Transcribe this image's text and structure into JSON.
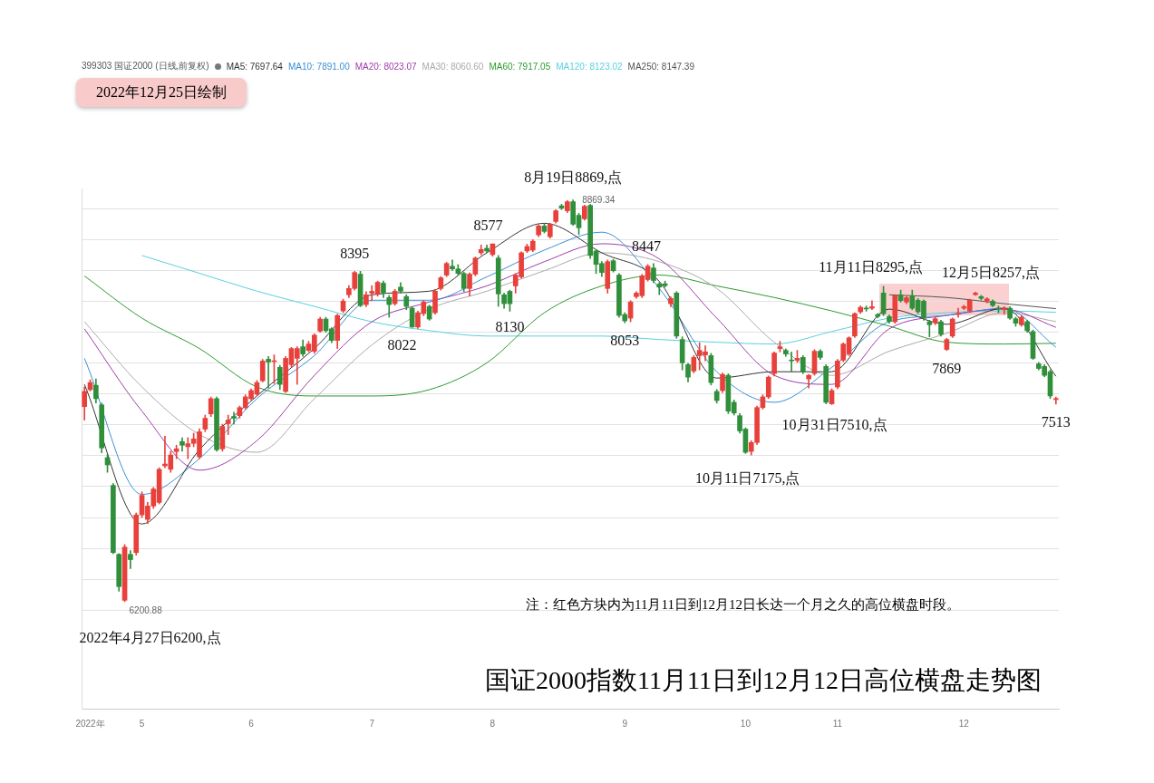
{
  "chart_data": {
    "type": "candlestick",
    "title": "国证2000指数11月11日到12月12日高位横盘走势图",
    "subtitle": "2022年12月25日绘制",
    "legend_title": "399303 国证2000 (日线,前复权)",
    "categories": [
      null,
      "2022年",
      null,
      null,
      null,
      null,
      null,
      null,
      null,
      null,
      "5",
      null,
      null,
      null,
      null,
      null,
      null,
      null,
      null,
      null,
      null,
      null,
      null,
      null,
      null,
      null,
      null,
      null,
      null,
      "6",
      null,
      null,
      null,
      null,
      null,
      null,
      null,
      null,
      null,
      null,
      null,
      null,
      null,
      null,
      null,
      null,
      null,
      null,
      null,
      null,
      "7",
      null,
      null,
      null,
      null,
      null,
      null,
      null,
      null,
      null,
      null,
      null,
      null,
      null,
      null,
      null,
      null,
      null,
      null,
      null,
      null,
      "8",
      null,
      null,
      null,
      null,
      null,
      null,
      null,
      null,
      null,
      null,
      null,
      null,
      null,
      null,
      null,
      null,
      null,
      null,
      null,
      null,
      null,
      null,
      "9",
      null,
      null,
      null,
      null,
      null,
      null,
      null,
      null,
      null,
      null,
      null,
      null,
      null,
      null,
      null,
      null,
      null,
      null,
      null,
      null,
      "10",
      null,
      null,
      null,
      null,
      null,
      null,
      null,
      null,
      null,
      null,
      null,
      null,
      null,
      null,
      null,
      "11",
      null,
      null,
      null,
      null,
      null,
      null,
      null,
      null,
      null,
      null,
      null,
      null,
      null,
      null,
      null,
      null,
      null,
      null,
      null,
      null,
      null,
      "12",
      null,
      null,
      null,
      null,
      null,
      null,
      null,
      null,
      null,
      null,
      null,
      null,
      null,
      null,
      null,
      null
    ],
    "ohlc": [
      [
        7496,
        7627,
        7407,
        7597
      ],
      [
        7609,
        7674,
        7600,
        7656
      ],
      [
        7638,
        7680,
        7520,
        7549
      ],
      [
        7508,
        7520,
        7190,
        7222
      ],
      [
        7157,
        7180,
        7060,
        7109
      ],
      [
        6973,
        6985,
        6520,
        6527
      ],
      [
        6515,
        6520,
        6270,
        6301
      ],
      [
        6210,
        6580,
        6200.88,
        6563
      ],
      [
        6515,
        6540,
        6420,
        6480
      ],
      [
        6527,
        6790,
        6510,
        6777
      ],
      [
        6777,
        6930,
        6760,
        6907
      ],
      [
        6747,
        6860,
        6720,
        6836
      ],
      [
        6836,
        6960,
        6820,
        6949
      ],
      [
        6860,
        7090,
        6850,
        7080
      ],
      [
        7103,
        7300,
        7090,
        7115
      ],
      [
        7080,
        7200,
        7060,
        7175
      ],
      [
        7198,
        7240,
        7150,
        7216
      ],
      [
        7264,
        7290,
        7200,
        7240
      ],
      [
        7230,
        7290,
        7150,
        7250
      ],
      [
        7252,
        7320,
        7230,
        7282
      ],
      [
        7163,
        7350,
        7150,
        7329
      ],
      [
        7347,
        7440,
        7330,
        7419
      ],
      [
        7448,
        7560,
        7430,
        7549
      ],
      [
        7549,
        7560,
        7200,
        7210
      ],
      [
        7216,
        7380,
        7200,
        7365
      ],
      [
        7383,
        7440,
        7310,
        7407
      ],
      [
        7431,
        7460,
        7380,
        7419
      ],
      [
        7436,
        7500,
        7420,
        7490
      ],
      [
        7490,
        7575,
        7480,
        7561
      ],
      [
        7549,
        7615,
        7540,
        7603
      ],
      [
        7579,
        7670,
        7570,
        7656
      ],
      [
        7668,
        7810,
        7660,
        7799
      ],
      [
        7811,
        7830,
        7620,
        7793
      ],
      [
        7795,
        7840,
        7650,
        7800
      ],
      [
        7757,
        7770,
        7610,
        7644
      ],
      [
        7597,
        7830,
        7590,
        7817
      ],
      [
        7775,
        7890,
        7760,
        7882
      ],
      [
        7817,
        7895,
        7644,
        7882
      ],
      [
        7894,
        7940,
        7830,
        7846
      ],
      [
        7870,
        7930,
        7860,
        7912
      ],
      [
        7864,
        7980,
        7850,
        7971
      ],
      [
        7998,
        8090,
        7990,
        8078
      ],
      [
        8078,
        8090,
        7990,
        8001
      ],
      [
        8013,
        8020,
        7920,
        7936
      ],
      [
        7936,
        8110,
        7882,
        8102
      ],
      [
        8132,
        8210,
        8120,
        8197
      ],
      [
        8239,
        8300,
        8220,
        8281
      ],
      [
        8281,
        8395,
        8270,
        8387
      ],
      [
        8376,
        8395,
        8160,
        8168
      ],
      [
        8174,
        8260,
        8160,
        8239
      ],
      [
        8250,
        8300,
        8200,
        8262
      ],
      [
        8245,
        8330,
        8230,
        8322
      ],
      [
        8316,
        8330,
        8220,
        8251
      ],
      [
        8221,
        8235,
        8090,
        8174
      ],
      [
        8180,
        8275,
        8170,
        8263
      ],
      [
        8290,
        8320,
        8250,
        8263
      ],
      [
        8227,
        8240,
        8140,
        8162
      ],
      [
        8150,
        8160,
        8022,
        8025
      ],
      [
        8025,
        8130,
        8015,
        8120
      ],
      [
        8114,
        8200,
        8100,
        8191
      ],
      [
        8162,
        8170,
        8070,
        8078
      ],
      [
        8120,
        8275,
        8110,
        8263
      ],
      [
        8281,
        8360,
        8270,
        8352
      ],
      [
        8370,
        8455,
        8360,
        8447
      ],
      [
        8429,
        8470,
        8400,
        8411
      ],
      [
        8411,
        8440,
        8370,
        8381
      ],
      [
        8381,
        8390,
        8260,
        8281
      ],
      [
        8281,
        8385,
        8230,
        8376
      ],
      [
        8376,
        8490,
        8365,
        8483
      ],
      [
        8518,
        8570,
        8505,
        8540
      ],
      [
        8548,
        8570,
        8520,
        8530
      ],
      [
        8506,
        8577,
        8495,
        8577
      ],
      [
        8483,
        8500,
        8162,
        8245
      ],
      [
        8239,
        8250,
        8150,
        8180
      ],
      [
        8262,
        8270,
        8130,
        8180
      ],
      [
        8298,
        8380,
        8250,
        8370
      ],
      [
        8358,
        8525,
        8350,
        8518
      ],
      [
        8530,
        8575,
        8520,
        8560
      ],
      [
        8536,
        8605,
        8525,
        8595
      ],
      [
        8637,
        8705,
        8625,
        8696
      ],
      [
        8696,
        8710,
        8650,
        8660
      ],
      [
        8625,
        8715,
        8615,
        8708
      ],
      [
        8726,
        8805,
        8715,
        8797
      ],
      [
        8830,
        8840,
        8805,
        8815
      ],
      [
        8797,
        8865,
        8785,
        8857
      ],
      [
        8857,
        8869.34,
        8700,
        8708
      ],
      [
        8767,
        8780,
        8640,
        8684
      ],
      [
        8744,
        8835,
        8735,
        8827
      ],
      [
        8833,
        8840,
        8480,
        8500
      ],
      [
        8530,
        8540,
        8380,
        8441
      ],
      [
        8447,
        8460,
        8360,
        8387
      ],
      [
        8281,
        8470,
        8250,
        8459
      ],
      [
        8465,
        8475,
        8390,
        8399
      ],
      [
        8370,
        8380,
        8090,
        8102
      ],
      [
        8108,
        8120,
        8053,
        8066
      ],
      [
        8084,
        8200,
        8060,
        8191
      ],
      [
        8227,
        8260,
        8215,
        8250
      ],
      [
        8233,
        8375,
        8220,
        8364
      ],
      [
        8340,
        8440,
        8330,
        8429
      ],
      [
        8417,
        8447,
        8320,
        8334
      ],
      [
        8310,
        8320,
        8240,
        8290
      ],
      [
        8312,
        8330,
        8290,
        8300
      ],
      [
        8180,
        8225,
        8160,
        8215
      ],
      [
        8251,
        8260,
        7950,
        7965
      ],
      [
        7942,
        7960,
        7740,
        7787
      ],
      [
        7775,
        7785,
        7660,
        7692
      ],
      [
        7733,
        7835,
        7720,
        7823
      ],
      [
        7835,
        7920,
        7740,
        7870
      ],
      [
        7840,
        7900,
        7800,
        7860
      ],
      [
        7835,
        7850,
        7640,
        7656
      ],
      [
        7597,
        7610,
        7520,
        7537
      ],
      [
        7603,
        7720,
        7590,
        7710
      ],
      [
        7704,
        7715,
        7450,
        7466
      ],
      [
        7525,
        7540,
        7440,
        7454
      ],
      [
        7436,
        7450,
        7320,
        7335
      ],
      [
        7347,
        7355,
        7185,
        7193
      ],
      [
        7199,
        7270,
        7175,
        7258
      ],
      [
        7258,
        7500,
        7245,
        7490
      ],
      [
        7490,
        7575,
        7480,
        7561
      ],
      [
        7561,
        7700,
        7550,
        7692
      ],
      [
        7716,
        7860,
        7700,
        7852
      ],
      [
        7882,
        7930,
        7860,
        7894
      ],
      [
        7870,
        7880,
        7830,
        7846
      ],
      [
        7805,
        7860,
        7730,
        7800
      ],
      [
        7804,
        7870,
        7790,
        7817
      ],
      [
        7823,
        7835,
        7715,
        7728
      ],
      [
        7680,
        7710,
        7620,
        7704
      ],
      [
        7716,
        7875,
        7705,
        7864
      ],
      [
        7864,
        7875,
        7810,
        7823
      ],
      [
        7763,
        7775,
        7515,
        7525
      ],
      [
        7515,
        7615,
        7510,
        7603
      ],
      [
        7627,
        7810,
        7615,
        7799
      ],
      [
        7805,
        7920,
        7795,
        7912
      ],
      [
        7846,
        7960,
        7835,
        7953
      ],
      [
        7965,
        8120,
        7955,
        8114
      ],
      [
        8126,
        8165,
        8115,
        8156
      ],
      [
        8150,
        8165,
        8130,
        8145
      ],
      [
        8150,
        8200,
        8140,
        8160
      ],
      [
        8108,
        8115,
        8085,
        8095
      ],
      [
        8251,
        8295,
        8100,
        8114
      ],
      [
        8096,
        8105,
        8050,
        8062
      ],
      [
        8060,
        8240,
        8050,
        8233
      ],
      [
        8239,
        8270,
        8190,
        8200
      ],
      [
        8191,
        8230,
        8180,
        8220
      ],
      [
        8233,
        8270,
        8140,
        8150
      ],
      [
        8203,
        8215,
        8115,
        8126
      ],
      [
        8197,
        8205,
        8070,
        8084
      ],
      [
        8060,
        8070,
        7960,
        8040
      ],
      [
        8053,
        8090,
        8040,
        8080
      ],
      [
        8060,
        8070,
        7965,
        7977
      ],
      [
        7876,
        7950,
        7869,
        7942
      ],
      [
        7965,
        8085,
        7955,
        8078
      ],
      [
        8110,
        8150,
        8090,
        8112
      ],
      [
        8150,
        8170,
        8140,
        8160
      ],
      [
        8132,
        8210,
        8120,
        8203
      ],
      [
        8240,
        8257,
        8235,
        8250
      ],
      [
        8227,
        8235,
        8205,
        8215
      ],
      [
        8197,
        8220,
        8185,
        8212
      ],
      [
        8197,
        8205,
        8160,
        8168
      ],
      [
        8150,
        8165,
        8120,
        8145
      ],
      [
        8140,
        8160,
        8110,
        8150
      ],
      [
        8150,
        8160,
        8075,
        8084
      ],
      [
        8080,
        8090,
        8030,
        8050
      ],
      [
        8040,
        8100,
        8030,
        8090
      ],
      [
        8060,
        8070,
        7990,
        8001
      ],
      [
        7995,
        8005,
        7810,
        7817
      ],
      [
        7780,
        7790,
        7740,
        7750
      ],
      [
        7763,
        7775,
        7695,
        7704
      ],
      [
        7728,
        7740,
        7550,
        7567
      ],
      [
        7543,
        7560,
        7513,
        7550
      ]
    ],
    "series": [
      {
        "name": "MA5: 7697.64",
        "type": "line",
        "color": "#333333",
        "values": [
          7644,
          null,
          null,
          null,
          null,
          null,
          null,
          null,
          null,
          null,
          6717,
          null,
          null,
          null,
          null,
          null,
          null,
          null,
          null,
          null,
          7210,
          null,
          null,
          null,
          null,
          null,
          null,
          null,
          null,
          null,
          7567,
          null,
          null,
          null,
          null,
          null,
          null,
          null,
          null,
          null,
          7882,
          null,
          null,
          null,
          null,
          null,
          null,
          null,
          null,
          null,
          8239,
          null,
          null,
          null,
          null,
          null,
          null,
          null,
          null,
          null,
          8263,
          null,
          null,
          null,
          null,
          null,
          null,
          null,
          null,
          null,
          8518,
          null,
          null,
          null,
          null,
          null,
          null,
          null,
          null,
          null,
          8714,
          null,
          null,
          null,
          null,
          null,
          null,
          null,
          null,
          null,
          8518,
          null,
          null,
          null,
          null,
          null,
          null,
          null,
          null,
          null,
          8328,
          null,
          null,
          null,
          null,
          null,
          null,
          null,
          null,
          null,
          7686,
          null,
          null,
          null,
          null,
          null,
          null,
          null,
          null,
          null,
          7728,
          null,
          null,
          null,
          null,
          null,
          null,
          null,
          null,
          null,
          7728,
          null,
          null,
          null,
          null,
          null,
          null,
          null,
          null,
          null,
          8144,
          null,
          null,
          null,
          null,
          null,
          null,
          null,
          null,
          null,
          8043,
          null,
          null,
          null,
          null,
          null,
          null,
          null,
          null,
          null,
          8150,
          null,
          null,
          null,
          null,
          null,
          null,
          null,
          null,
          7698
        ]
      },
      {
        "name": "MA10: 7891.00",
        "type": "line",
        "color": "#3a8fd6",
        "values": [
          7817,
          null,
          null,
          null,
          null,
          null,
          null,
          null,
          null,
          null,
          6913,
          null,
          null,
          null,
          null,
          null,
          null,
          null,
          null,
          null,
          7151,
          null,
          null,
          null,
          null,
          null,
          null,
          null,
          null,
          null,
          7549,
          null,
          null,
          null,
          null,
          null,
          null,
          null,
          null,
          null,
          7835,
          null,
          null,
          null,
          null,
          null,
          null,
          null,
          null,
          null,
          8203,
          null,
          null,
          null,
          null,
          null,
          null,
          null,
          null,
          null,
          8203,
          null,
          null,
          null,
          null,
          null,
          null,
          null,
          null,
          null,
          8358,
          null,
          null,
          null,
          null,
          null,
          null,
          null,
          null,
          null,
          8536,
          null,
          null,
          null,
          null,
          null,
          null,
          null,
          null,
          null,
          8655,
          null,
          null,
          null,
          null,
          null,
          null,
          null,
          null,
          null,
          8281,
          null,
          null,
          null,
          null,
          null,
          null,
          null,
          null,
          null,
          7728,
          null,
          null,
          null,
          null,
          null,
          null,
          null,
          null,
          null,
          7525,
          null,
          null,
          null,
          null,
          null,
          null,
          null,
          null,
          null,
          7757,
          null,
          null,
          null,
          null,
          null,
          null,
          null,
          null,
          null,
          8060,
          null,
          null,
          null,
          null,
          null,
          null,
          null,
          null,
          null,
          8102,
          null,
          null,
          null,
          null,
          null,
          null,
          null,
          null,
          null,
          8150,
          null,
          null,
          null,
          null,
          null,
          null,
          null,
          null,
          7891
        ]
      },
      {
        "name": "MA20: 8023.07",
        "type": "line",
        "color": "#a03ca8",
        "values": [
          8013,
          null,
          null,
          null,
          null,
          null,
          null,
          null,
          null,
          null,
          7466,
          null,
          null,
          null,
          null,
          null,
          null,
          null,
          null,
          null,
          7074,
          null,
          null,
          null,
          null,
          null,
          null,
          null,
          null,
          null,
          7270,
          null,
          null,
          null,
          null,
          null,
          null,
          null,
          null,
          null,
          7704,
          null,
          null,
          null,
          null,
          null,
          null,
          null,
          null,
          null,
          8060,
          null,
          null,
          null,
          null,
          null,
          null,
          null,
          null,
          null,
          8191,
          null,
          null,
          null,
          null,
          null,
          null,
          null,
          null,
          null,
          8298,
          null,
          null,
          null,
          null,
          null,
          null,
          null,
          null,
          null,
          8459,
          null,
          null,
          null,
          null,
          null,
          null,
          null,
          null,
          null,
          8578,
          null,
          null,
          null,
          null,
          null,
          null,
          null,
          null,
          null,
          8477,
          null,
          null,
          null,
          null,
          null,
          null,
          null,
          null,
          null,
          8084,
          null,
          null,
          null,
          null,
          null,
          null,
          null,
          null,
          null,
          7704,
          null,
          null,
          null,
          null,
          null,
          null,
          null,
          null,
          null,
          7644,
          null,
          null,
          null,
          null,
          null,
          null,
          null,
          null,
          null,
          8013,
          null,
          null,
          null,
          null,
          null,
          null,
          null,
          null,
          null,
          8102,
          null,
          null,
          null,
          null,
          null,
          null,
          null,
          null,
          null,
          8144,
          null,
          null,
          null,
          null,
          null,
          null,
          null,
          null,
          8023
        ]
      },
      {
        "name": "MA30: 8060.60",
        "type": "line",
        "color": "#aaaaaa",
        "values": [
          8060,
          null,
          null,
          null,
          null,
          null,
          null,
          null,
          null,
          null,
          7627,
          null,
          null,
          null,
          null,
          null,
          null,
          null,
          null,
          null,
          7311,
          null,
          null,
          null,
          null,
          null,
          null,
          null,
          null,
          null,
          7193,
          null,
          null,
          null,
          null,
          null,
          null,
          null,
          null,
          null,
          7549,
          null,
          null,
          null,
          null,
          null,
          null,
          null,
          null,
          null,
          7906,
          null,
          null,
          null,
          null,
          null,
          null,
          null,
          null,
          null,
          8144,
          null,
          null,
          null,
          null,
          null,
          null,
          null,
          null,
          null,
          8263,
          null,
          null,
          null,
          null,
          null,
          null,
          null,
          null,
          null,
          8399,
          null,
          null,
          null,
          null,
          null,
          null,
          null,
          null,
          null,
          8518,
          null,
          null,
          null,
          null,
          null,
          null,
          null,
          null,
          null,
          8459,
          null,
          null,
          null,
          null,
          null,
          null,
          null,
          null,
          null,
          8281,
          null,
          null,
          null,
          null,
          null,
          null,
          null,
          null,
          null,
          7924,
          null,
          null,
          null,
          null,
          null,
          null,
          null,
          null,
          null,
          7704,
          null,
          null,
          null,
          null,
          null,
          null,
          null,
          null,
          null,
          7864,
          null,
          null,
          null,
          null,
          null,
          null,
          null,
          null,
          null,
          7983,
          null,
          null,
          null,
          null,
          null,
          null,
          null,
          null,
          null,
          8120,
          null,
          null,
          null,
          null,
          null,
          null,
          null,
          null,
          8061
        ]
      },
      {
        "name": "MA60: 7917.05",
        "type": "line",
        "color": "#2e9a2e",
        "values": [
          8364,
          null,
          null,
          null,
          null,
          null,
          null,
          null,
          null,
          null,
          8084,
          null,
          null,
          null,
          null,
          null,
          null,
          null,
          null,
          null,
          7882,
          null,
          null,
          null,
          null,
          null,
          null,
          null,
          null,
          null,
          7627,
          null,
          null,
          null,
          null,
          null,
          null,
          null,
          null,
          null,
          7567,
          null,
          null,
          null,
          null,
          null,
          null,
          null,
          null,
          null,
          7567,
          null,
          null,
          null,
          null,
          null,
          null,
          null,
          null,
          null,
          7609,
          null,
          null,
          null,
          null,
          null,
          null,
          null,
          null,
          null,
          7787,
          null,
          null,
          null,
          null,
          null,
          null,
          null,
          null,
          null,
          8120,
          null,
          null,
          null,
          null,
          null,
          null,
          null,
          null,
          null,
          8298,
          null,
          null,
          null,
          null,
          null,
          null,
          null,
          null,
          null,
          8370,
          null,
          null,
          null,
          null,
          null,
          null,
          null,
          null,
          null,
          8298,
          null,
          null,
          null,
          null,
          null,
          null,
          null,
          null,
          null,
          8221,
          null,
          null,
          null,
          null,
          null,
          null,
          null,
          null,
          null,
          8132,
          null,
          null,
          null,
          null,
          null,
          null,
          null,
          null,
          null,
          8031,
          null,
          null,
          null,
          null,
          null,
          null,
          null,
          null,
          null,
          7924,
          null,
          null,
          null,
          null,
          null,
          null,
          null,
          null,
          null,
          7912,
          null,
          null,
          null,
          null,
          null,
          null,
          null,
          null,
          7917
        ]
      },
      {
        "name": "MA120: 8123.02",
        "type": "line",
        "color": "#5ad0e0",
        "values": [
          null,
          null,
          null,
          null,
          null,
          null,
          null,
          null,
          null,
          null,
          8500,
          null,
          null,
          null,
          null,
          null,
          null,
          null,
          null,
          null,
          8382,
          null,
          null,
          null,
          null,
          null,
          null,
          null,
          null,
          null,
          8263,
          null,
          null,
          null,
          null,
          null,
          null,
          null,
          null,
          null,
          8162,
          null,
          null,
          null,
          null,
          null,
          null,
          null,
          null,
          null,
          8060,
          null,
          null,
          null,
          null,
          null,
          null,
          null,
          null,
          null,
          8001,
          null,
          null,
          null,
          null,
          null,
          null,
          null,
          null,
          null,
          7965,
          null,
          null,
          null,
          null,
          null,
          null,
          null,
          null,
          null,
          7965,
          null,
          null,
          null,
          null,
          null,
          null,
          null,
          null,
          null,
          7965,
          null,
          null,
          null,
          null,
          null,
          null,
          null,
          null,
          null,
          7942,
          null,
          null,
          null,
          null,
          null,
          null,
          null,
          null,
          null,
          7924,
          null,
          null,
          null,
          null,
          null,
          null,
          null,
          null,
          null,
          7912,
          null,
          null,
          null,
          null,
          null,
          null,
          null,
          null,
          null,
          7995,
          null,
          null,
          null,
          null,
          null,
          null,
          null,
          null,
          null,
          8084,
          null,
          null,
          null,
          null,
          null,
          null,
          null,
          null,
          null,
          8120,
          null,
          null,
          null,
          null,
          null,
          null,
          null,
          null,
          null,
          8132,
          null,
          null,
          null,
          null,
          null,
          null,
          null,
          null,
          8123
        ]
      },
      {
        "name": "MA250: 8147.39",
        "type": "line",
        "color": "#555555",
        "values": [
          null,
          null,
          null,
          null,
          null,
          null,
          null,
          null,
          null,
          null,
          null,
          null,
          null,
          null,
          null,
          null,
          null,
          null,
          null,
          null,
          null,
          null,
          null,
          null,
          null,
          null,
          null,
          null,
          null,
          null,
          null,
          null,
          null,
          null,
          null,
          null,
          null,
          null,
          null,
          null,
          null,
          null,
          null,
          null,
          null,
          null,
          null,
          null,
          null,
          null,
          null,
          null,
          null,
          null,
          null,
          null,
          null,
          null,
          null,
          null,
          null,
          null,
          null,
          null,
          null,
          null,
          null,
          null,
          null,
          null,
          null,
          null,
          null,
          null,
          null,
          null,
          null,
          null,
          null,
          null,
          null,
          null,
          null,
          null,
          null,
          null,
          null,
          null,
          null,
          null,
          null,
          null,
          null,
          null,
          null,
          null,
          null,
          null,
          null,
          null,
          null,
          null,
          null,
          null,
          null,
          null,
          null,
          null,
          null,
          null,
          null,
          null,
          null,
          null,
          null,
          null,
          null,
          null,
          null,
          null,
          null,
          null,
          null,
          null,
          null,
          null,
          null,
          null,
          null,
          null,
          null,
          null,
          null,
          null,
          null,
          null,
          null,
          null,
          null,
          null,
          8239,
          null,
          null,
          null,
          null,
          null,
          null,
          null,
          null,
          null,
          8221,
          null,
          null,
          null,
          null,
          null,
          null,
          null,
          null,
          null,
          8180,
          null,
          null,
          null,
          null,
          null,
          null,
          null,
          null,
          8147
        ]
      }
    ],
    "annotations": [
      "8月19日8869,点",
      "8869.34",
      "8395",
      "8022",
      "8577",
      "8130",
      "8447",
      "8053",
      "11月11日8295,点",
      "12月5日8257,点",
      "7869",
      "10月31日7510,点",
      "10月11日7175,点",
      "7513",
      "6200.88",
      "2022年4月27日6200,点",
      "注：红色方块内为11月11日到12月12日长达一个月之久的高位横盘时段。"
    ],
    "ylim": [
      5490,
      8945
    ],
    "yticks": [
      {
        "value": 6145,
        "label": null
      },
      {
        "value": 6350,
        "label": null
      },
      {
        "value": 6555,
        "label": null
      },
      {
        "value": 6760,
        "label": null
      },
      {
        "value": 6965,
        "label": null
      },
      {
        "value": 7170,
        "label": null
      },
      {
        "value": 7375,
        "label": null
      },
      {
        "value": 7580,
        "label": null
      },
      {
        "value": 7785,
        "label": null
      },
      {
        "value": 7990,
        "label": null
      },
      {
        "value": 8195,
        "label": null
      },
      {
        "value": 8400,
        "label": null
      },
      {
        "value": 8605,
        "label": null
      },
      {
        "value": 8810,
        "label": null
      }
    ],
    "grid": "y",
    "tick_labels": "x",
    "legend": "top left"
  }
}
